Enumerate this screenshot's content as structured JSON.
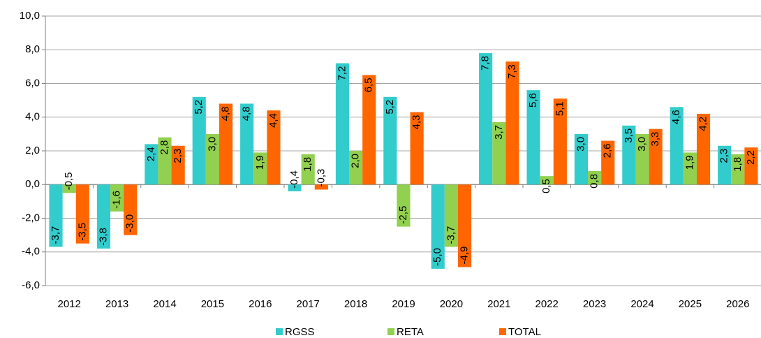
{
  "chart_data": {
    "type": "bar",
    "categories": [
      "2012",
      "2013",
      "2014",
      "2015",
      "2016",
      "2017",
      "2018",
      "2019",
      "2020",
      "2021",
      "2022",
      "2023",
      "2024",
      "2025",
      "2026"
    ],
    "series": [
      {
        "name": "RGSS",
        "color": "#33cccc",
        "values": [
          -3.7,
          -3.8,
          2.4,
          5.2,
          4.8,
          -0.4,
          7.2,
          5.2,
          -5.0,
          7.8,
          5.6,
          3.0,
          3.5,
          4.6,
          2.3
        ],
        "value_labels": [
          "-3,7",
          "-3,8",
          "2,4",
          "5,2",
          "4,8",
          "-0,4",
          "7,2",
          "5,2",
          "-5,0",
          "7,8",
          "5,6",
          "3,0",
          "3,5",
          "4,6",
          "2,3"
        ]
      },
      {
        "name": "RETA",
        "color": "#92d050",
        "values": [
          -0.5,
          -1.6,
          2.8,
          3.0,
          1.9,
          1.8,
          2.0,
          -2.5,
          -3.7,
          3.7,
          0.5,
          0.8,
          3.0,
          1.9,
          1.8
        ],
        "value_labels": [
          "-0,5",
          "-1,6",
          "2,8",
          "3,0",
          "1,9",
          "1,8",
          "2,0",
          "-2,5",
          "-3,7",
          "3,7",
          "0,5",
          "0,8",
          "3,0",
          "1,9",
          "1,8"
        ]
      },
      {
        "name": "TOTAL",
        "color": "#ff6600",
        "values": [
          -3.5,
          -3.0,
          2.3,
          4.8,
          4.4,
          -0.3,
          6.5,
          4.3,
          -4.9,
          7.3,
          5.1,
          2.6,
          3.3,
          4.2,
          2.2
        ],
        "value_labels": [
          "-3,5",
          "-3,0",
          "2,3",
          "4,8",
          "4,4",
          "-0,3",
          "6,5",
          "4,3",
          "-4,9",
          "7,3",
          "5,1",
          "2,6",
          "3,3",
          "4,2",
          "2,2"
        ]
      }
    ],
    "ylim": [
      -6,
      10
    ],
    "yticks": [
      {
        "value": -6,
        "label": "-6,0"
      },
      {
        "value": -4,
        "label": "-4,0"
      },
      {
        "value": -2,
        "label": "-2,0"
      },
      {
        "value": 0,
        "label": "0,0"
      },
      {
        "value": 2,
        "label": "2,0"
      },
      {
        "value": 4,
        "label": "4,0"
      },
      {
        "value": 6,
        "label": "6,0"
      },
      {
        "value": 8,
        "label": "8,0"
      },
      {
        "value": 10,
        "label": "10,0"
      }
    ],
    "grid": true,
    "legend": "bottom"
  }
}
